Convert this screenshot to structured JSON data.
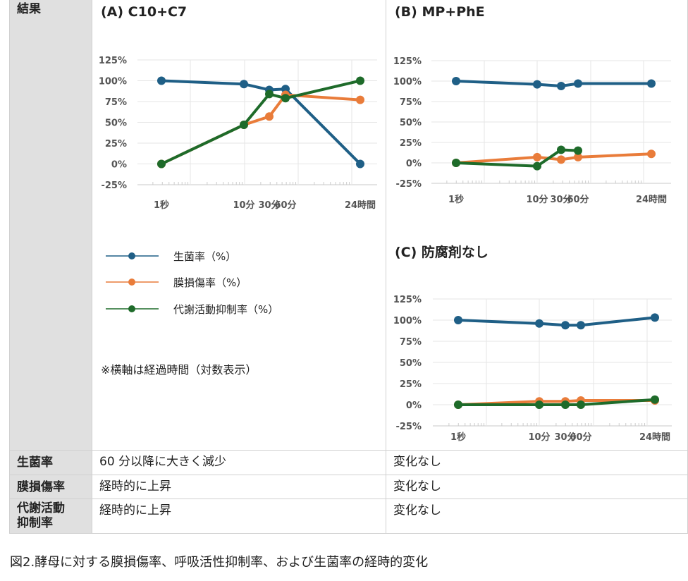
{
  "table": {
    "header_label": "結果",
    "rows": [
      {
        "label": "生菌率",
        "c10c7": "60 分以降に大きく減少",
        "mp_phe": "変化なし"
      },
      {
        "label": "膜損傷率",
        "c10c7": "経時的に上昇",
        "mp_phe": "変化なし"
      },
      {
        "label_line1": "代謝活動",
        "label_line2": "抑制率",
        "c10c7": "経時的に上昇",
        "mp_phe": "変化なし"
      }
    ]
  },
  "legend": {
    "items": [
      {
        "label": "生菌率（%）",
        "color": "#1f5f86"
      },
      {
        "label": "膜損傷率（%）",
        "color": "#e97c3a"
      },
      {
        "label": "代謝活動抑制率（%）",
        "color": "#1e6b2a"
      }
    ]
  },
  "note": "※横軸は経過時間（対数表示）",
  "caption": "図2.酵母に対する膜損傷率、呼吸活性抑制率、および生菌率の経時的変化",
  "chart_data": [
    {
      "type": "line",
      "title": "(A) C10+C7",
      "x_scale": "log",
      "categories": [
        "1秒",
        "10分",
        "30分",
        "60分",
        "24時間"
      ],
      "yticks": [
        "125%",
        "100%",
        "75%",
        "50%",
        "25%",
        "0%",
        "-25%"
      ],
      "ylim": [
        -25,
        125
      ],
      "series": [
        {
          "name": "生菌率（%）",
          "color": "#1f5f86",
          "values": [
            100,
            96,
            89,
            90,
            0
          ]
        },
        {
          "name": "膜損傷率（%）",
          "color": "#e97c3a",
          "values": [
            0,
            47,
            57,
            83,
            77
          ]
        },
        {
          "name": "代謝活動抑制率（%）",
          "color": "#1e6b2a",
          "values": [
            0,
            47,
            84,
            79,
            100
          ]
        }
      ]
    },
    {
      "type": "line",
      "title": "(B)  MP+PhE",
      "x_scale": "log",
      "categories": [
        "1秒",
        "10分",
        "30分",
        "60分",
        "24時間"
      ],
      "yticks": [
        "125%",
        "100%",
        "75%",
        "50%",
        "25%",
        "0%",
        "-25%"
      ],
      "ylim": [
        -25,
        125
      ],
      "series": [
        {
          "name": "生菌率（%）",
          "color": "#1f5f86",
          "values": [
            100,
            96,
            94,
            97,
            97
          ]
        },
        {
          "name": "膜損傷率（%）",
          "color": "#e97c3a",
          "values": [
            0,
            7,
            4,
            7,
            11
          ]
        },
        {
          "name": "代謝活動抑制率（%）",
          "color": "#1e6b2a",
          "values": [
            0,
            -4,
            16,
            15,
            null
          ]
        }
      ]
    },
    {
      "type": "line",
      "title": "(C)  防腐剤なし",
      "x_scale": "log",
      "categories": [
        "1秒",
        "10分",
        "30分",
        "60分",
        "24時間"
      ],
      "yticks": [
        "125%",
        "100%",
        "75%",
        "50%",
        "25%",
        "0%",
        "-25%"
      ],
      "ylim": [
        -25,
        125
      ],
      "series": [
        {
          "name": "生菌率（%）",
          "color": "#1f5f86",
          "values": [
            100,
            96,
            94,
            94,
            103
          ]
        },
        {
          "name": "膜損傷率（%）",
          "color": "#e97c3a",
          "values": [
            0,
            4,
            4,
            5,
            5
          ]
        },
        {
          "name": "代謝活動抑制率（%）",
          "color": "#1e6b2a",
          "values": [
            0,
            0,
            0,
            0,
            6
          ]
        }
      ]
    }
  ]
}
